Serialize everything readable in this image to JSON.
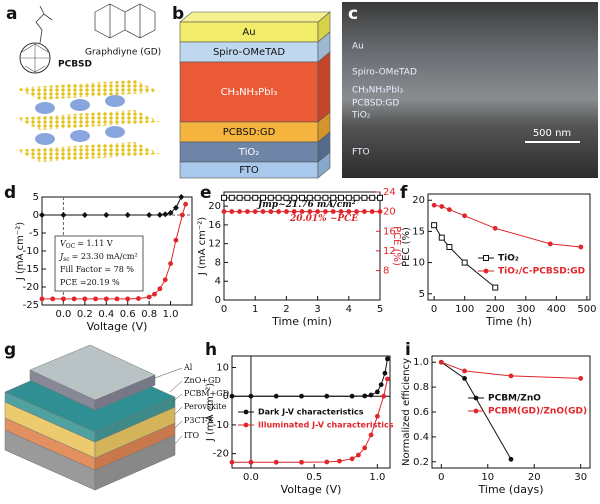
{
  "panels": [
    "a",
    "b",
    "c",
    "d",
    "e",
    "f",
    "g",
    "h",
    "i"
  ],
  "panel_a": {
    "labels": [
      "PCBSD",
      "Graphdiyne (GD)"
    ]
  },
  "panel_b": {
    "layers": [
      "Au",
      "Spiro-OMeTAD",
      "CH₃NH₃PbI₃",
      "PCBSD:GD",
      "TiO₂",
      "FTO"
    ]
  },
  "panel_c": {
    "layers": [
      "Au",
      "Spiro-OMeTAD",
      "CH₃NH₃PbI₃",
      "PCBSD:GD",
      "TiO₂",
      "FTO"
    ],
    "scale_bar": "500 nm"
  },
  "panel_g": {
    "layers": [
      "Al",
      "ZnO+GD",
      "PCBM+GD",
      "Perovskite",
      "P3CT-K",
      "ITO"
    ]
  },
  "chart_data": [
    {
      "type": "line",
      "xlabel": "Voltage (V)",
      "ylabel": "J (mA cm⁻²)",
      "xlim": [
        -0.2,
        1.2
      ],
      "xticks": [
        {
          "value": 0,
          "label": "0.0"
        },
        0.2,
        0.4,
        0.6,
        0.8,
        {
          "value": 1,
          "label": "1.0"
        }
      ],
      "ylim": [
        -25,
        5
      ],
      "yticks": [
        -25,
        -20,
        -15,
        -10,
        -5,
        0,
        5
      ],
      "annotations": [
        [
          "V",
          "OC",
          "= 1.11 V"
        ],
        [
          "J",
          "sc",
          "= 23.30 mA/cm²"
        ],
        [
          "Fill Factor = 78 %"
        ],
        [
          "PCE =20.19 %"
        ]
      ],
      "series": [
        {
          "color": "#111111",
          "marker": "diamond",
          "x": [
            -0.2,
            0,
            0.2,
            0.4,
            0.6,
            0.8,
            0.9,
            0.95,
            1.0,
            1.05,
            1.1
          ],
          "values": [
            0,
            0,
            0,
            0,
            0,
            0,
            0.05,
            0.2,
            0.6,
            2,
            5
          ]
        },
        {
          "color": "#e0262b",
          "marker": "circle",
          "x": [
            -0.2,
            -0.1,
            0,
            0.1,
            0.2,
            0.3,
            0.4,
            0.5,
            0.6,
            0.7,
            0.8,
            0.85,
            0.9,
            0.95,
            1.0,
            1.05,
            1.11,
            1.14
          ],
          "values": [
            -23.3,
            -23.3,
            -23.3,
            -23.3,
            -23.3,
            -23.3,
            -23.3,
            -23.3,
            -23.3,
            -23.2,
            -22.8,
            -22,
            -20.5,
            -18,
            -13.5,
            -7,
            0,
            3
          ]
        }
      ]
    },
    {
      "type": "line",
      "xlabel": "Time (min)",
      "ylabel": "J (mA cm⁻²)",
      "y2label": "PCE (%)",
      "xlim": [
        0,
        5
      ],
      "xticks": [
        0,
        1,
        2,
        3,
        4,
        5
      ],
      "ylim": [
        0,
        23
      ],
      "yticks": [
        0,
        4,
        8,
        12,
        16,
        20
      ],
      "y2lim": [
        2,
        24
      ],
      "y2ticks": [
        8,
        12,
        16,
        20,
        24
      ],
      "annotations": [
        [
          "Jmp~21.76 mA/cm²"
        ],
        [
          "20.01% ~PCE"
        ]
      ],
      "series": [
        {
          "color": "#111111",
          "marker": "square",
          "x": [
            0,
            0.25,
            0.5,
            0.75,
            1,
            1.25,
            1.5,
            1.75,
            2,
            2.25,
            2.5,
            2.75,
            3,
            3.25,
            3.5,
            3.75,
            4,
            4.25,
            4.5,
            4.75,
            5
          ],
          "values": [
            21.76,
            21.76,
            21.76,
            21.76,
            21.76,
            21.76,
            21.76,
            21.76,
            21.76,
            21.76,
            21.76,
            21.76,
            21.76,
            21.76,
            21.76,
            21.76,
            21.76,
            21.76,
            21.76,
            21.76,
            21.76
          ]
        },
        {
          "color": "#e0262b",
          "marker": "circle",
          "axis": "y2",
          "x": [
            0,
            0.25,
            0.5,
            0.75,
            1,
            1.25,
            1.5,
            1.75,
            2,
            2.25,
            2.5,
            2.75,
            3,
            3.25,
            3.5,
            3.75,
            4,
            4.25,
            4.5,
            4.75,
            5
          ],
          "values": [
            20.01,
            20.01,
            20.01,
            20.01,
            20.01,
            20.01,
            20.01,
            20.01,
            20.01,
            20.01,
            20.01,
            20.01,
            20.01,
            20.01,
            20.01,
            20.01,
            20.01,
            20.01,
            20.01,
            20.01,
            20.01
          ]
        }
      ]
    },
    {
      "type": "line",
      "xlabel": "Time (h)",
      "ylabel": "PEC (%)",
      "xlim": [
        -20,
        510
      ],
      "xticks": [
        0,
        100,
        200,
        300,
        400,
        500
      ],
      "ylim": [
        4,
        21
      ],
      "yticks": [
        5,
        10,
        15,
        20
      ],
      "series": [
        {
          "name": "TiO₂",
          "color": "#111111",
          "marker": "square",
          "x": [
            0,
            25,
            50,
            100,
            200
          ],
          "values": [
            16,
            14,
            12.5,
            10,
            6
          ]
        },
        {
          "name": "TiO₂/C-PCBSD:GD",
          "color": "#e0262b",
          "marker": "circle",
          "x": [
            0,
            25,
            50,
            100,
            200,
            380,
            480
          ],
          "values": [
            19.2,
            19,
            18.5,
            17.5,
            15.5,
            13,
            12.5
          ]
        }
      ]
    },
    {
      "type": "line",
      "xlabel": "Voltage (V)",
      "ylabel": "J (mA cm⁻²)",
      "xlim": [
        -0.15,
        1.1
      ],
      "xticks": [
        {
          "value": 0,
          "label": "0.0"
        },
        0.5,
        {
          "value": 1,
          "label": "1.0"
        }
      ],
      "ylim": [
        -25,
        14
      ],
      "yticks": [
        -20,
        -10,
        0,
        10
      ],
      "series": [
        {
          "name": "Dark J-V characteristics",
          "color": "#111111",
          "marker": "circle",
          "x": [
            -0.15,
            0,
            0.2,
            0.4,
            0.6,
            0.8,
            0.9,
            0.95,
            1.0,
            1.03,
            1.06,
            1.08
          ],
          "values": [
            0,
            0,
            0,
            0,
            0,
            0,
            0.1,
            0.4,
            1.5,
            4,
            8,
            13
          ]
        },
        {
          "name": "Illuminated J-V characteristics",
          "color": "#e0262b",
          "marker": "circle",
          "x": [
            -0.15,
            0,
            0.2,
            0.4,
            0.6,
            0.7,
            0.8,
            0.85,
            0.9,
            0.95,
            1.0,
            1.05,
            1.08
          ],
          "values": [
            -23,
            -23,
            -23,
            -23,
            -22.9,
            -22.6,
            -21.8,
            -20.5,
            -18,
            -13.5,
            -7,
            0,
            6
          ]
        }
      ]
    },
    {
      "type": "line",
      "xlabel": "Time (days)",
      "ylabel": "Normalized efficiency",
      "xlim": [
        -2,
        32
      ],
      "xticks": [
        0,
        10,
        20,
        30
      ],
      "ylim": [
        0.15,
        1.05
      ],
      "yticks": [
        0.2,
        0.4,
        0.6,
        0.8,
        {
          "value": 1,
          "label": "1.0"
        }
      ],
      "series": [
        {
          "name": "PCBM/ZnO",
          "color": "#111111",
          "marker": "circle",
          "x": [
            0,
            5,
            15
          ],
          "values": [
            1.0,
            0.87,
            0.22
          ]
        },
        {
          "name": "PCBM(GD)/ZnO(GD)",
          "color": "#e0262b",
          "marker": "circle",
          "x": [
            0,
            5,
            15,
            30
          ],
          "values": [
            1.0,
            0.93,
            0.89,
            0.87
          ]
        }
      ]
    }
  ]
}
